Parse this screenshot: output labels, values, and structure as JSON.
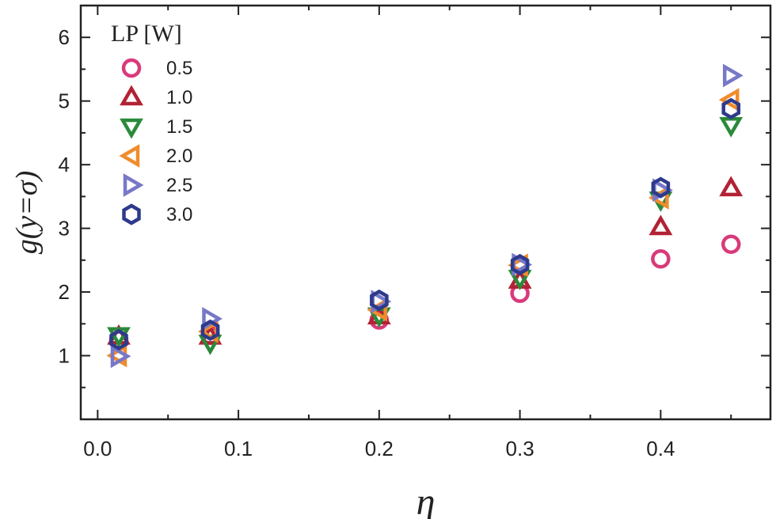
{
  "chart_data": {
    "type": "scatter",
    "xlabel": "η",
    "ylabel": "g(y=σ)",
    "xlim": [
      -0.012,
      0.478
    ],
    "ylim": [
      0.0,
      6.5
    ],
    "x_ticks": [
      "0.0",
      "0.1",
      "0.2",
      "0.3",
      "0.4"
    ],
    "x_tick_values": [
      0.0,
      0.1,
      0.2,
      0.3,
      0.4
    ],
    "y_ticks": [
      "1",
      "2",
      "3",
      "4",
      "5",
      "6"
    ],
    "y_tick_values": [
      1,
      2,
      3,
      4,
      5,
      6
    ],
    "legend_title": "LP [W]",
    "legend_position": "top-left",
    "grid": false,
    "series": [
      {
        "name": "0.5",
        "marker": "circle",
        "color": "#d93a7a",
        "x": [
          0.015,
          0.08,
          0.2,
          0.3,
          0.4,
          0.45
        ],
        "y": [
          1.25,
          1.32,
          1.56,
          1.98,
          2.52,
          2.75
        ]
      },
      {
        "name": "1.0",
        "marker": "triangle-up",
        "color": "#b22234",
        "x": [
          0.015,
          0.08,
          0.2,
          0.3,
          0.4,
          0.45
        ],
        "y": [
          1.3,
          1.3,
          1.62,
          2.18,
          3.02,
          3.63
        ]
      },
      {
        "name": "1.5",
        "marker": "triangle-down",
        "color": "#2a8a3a",
        "x": [
          0.015,
          0.08,
          0.2,
          0.3,
          0.4,
          0.45
        ],
        "y": [
          1.32,
          1.2,
          1.63,
          2.22,
          3.45,
          4.62
        ]
      },
      {
        "name": "2.0",
        "marker": "triangle-left",
        "color": "#f08c2c",
        "x": [
          0.015,
          0.08,
          0.2,
          0.3,
          0.4,
          0.45
        ],
        "y": [
          1.0,
          1.38,
          1.72,
          2.42,
          3.48,
          5.02
        ]
      },
      {
        "name": "2.5",
        "marker": "triangle-right",
        "color": "#7878c8",
        "x": [
          0.015,
          0.08,
          0.2,
          0.3,
          0.4,
          0.45
        ],
        "y": [
          0.99,
          1.58,
          1.85,
          2.43,
          3.6,
          5.4
        ]
      },
      {
        "name": "3.0",
        "marker": "hexagon",
        "color": "#2e3a8a",
        "x": [
          0.015,
          0.08,
          0.2,
          0.3,
          0.4,
          0.45
        ],
        "y": [
          1.25,
          1.4,
          1.87,
          2.43,
          3.64,
          4.88
        ]
      }
    ]
  }
}
